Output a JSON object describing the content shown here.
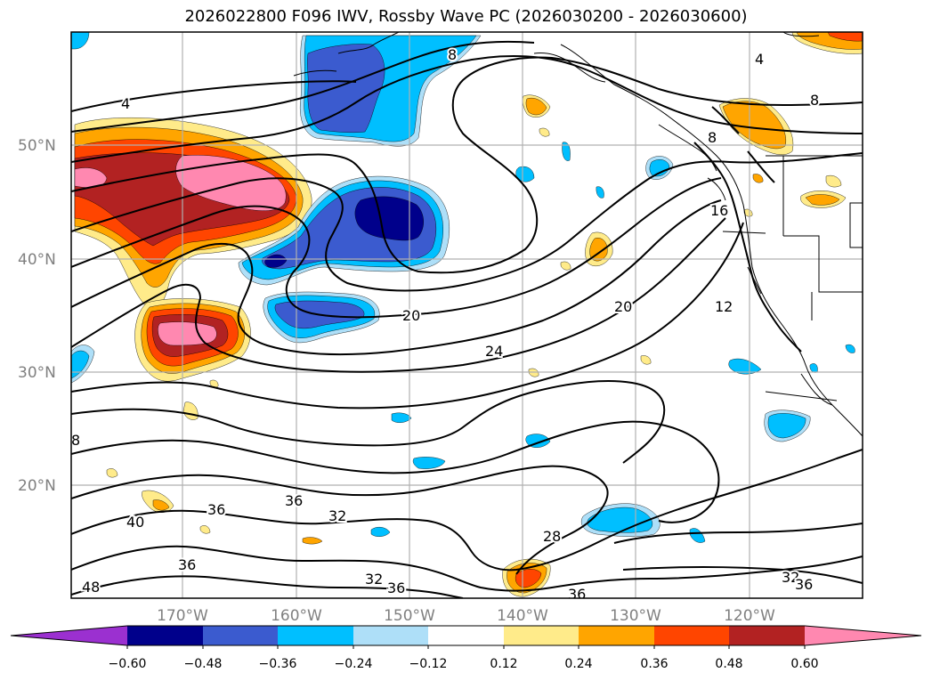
{
  "title": "2026022800 F096 IWV, Rossby Wave PC (2026030200 - 2026030600)",
  "colors": {
    "neg_extend": "#9b30d0",
    "pos_extend": "#ff88b0",
    "lv_n060": "#00008b",
    "lv_n048": "#3b5bcf",
    "lv_n036": "#00bfff",
    "lv_n024": "#aedff8",
    "lv_p012": "#ffeb8a",
    "lv_p024": "#ffa500",
    "lv_p036": "#ff4500",
    "lv_p048": "#b22222",
    "lv_p060": "#ff88b0",
    "land": "#ffffff",
    "contour": "#000000",
    "grid": "#b0b0b0"
  },
  "map": {
    "lon_labels": [
      "170°W",
      "160°W",
      "150°W",
      "140°W",
      "130°W",
      "120°W"
    ],
    "lat_labels": [
      "50°N",
      "40°N",
      "30°N",
      "20°N"
    ],
    "contour_labels": [
      "4",
      "8",
      "8",
      "8",
      "4",
      "16",
      "12",
      "20",
      "20",
      "24",
      "32",
      "36",
      "36",
      "40",
      "36",
      "28",
      "32",
      "36",
      "32",
      "36",
      "48",
      "36",
      "8"
    ]
  },
  "colorbar": {
    "tick_labels": [
      "−0.60",
      "−0.48",
      "−0.36",
      "−0.24",
      "−0.12",
      "0.12",
      "0.24",
      "0.36",
      "0.48",
      "0.60"
    ]
  }
}
